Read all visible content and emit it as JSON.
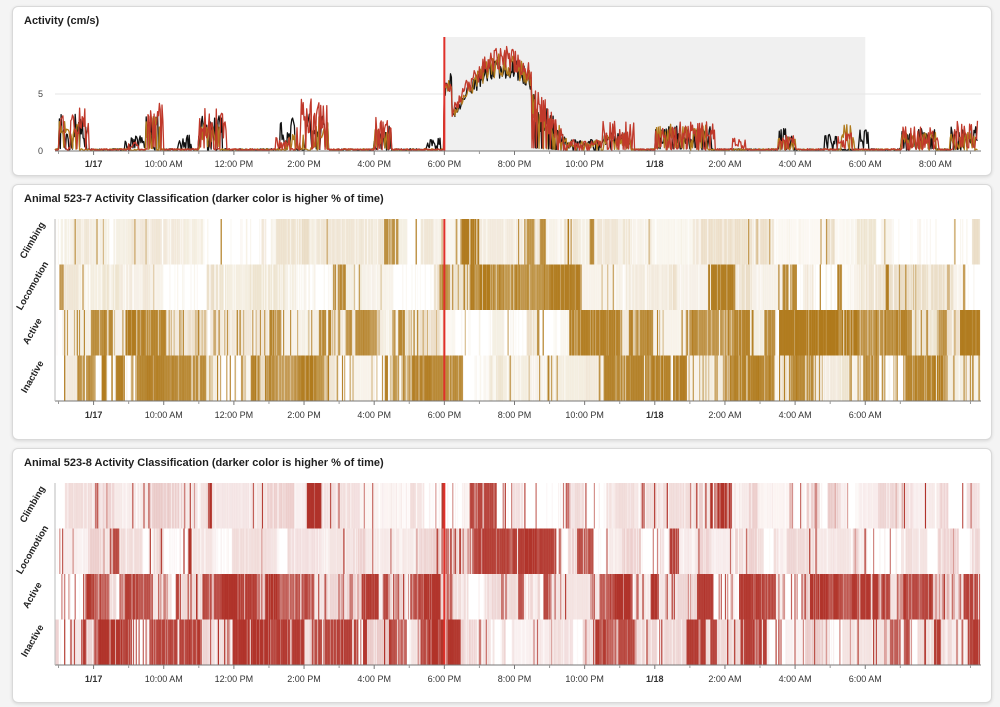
{
  "panels": {
    "activity_title": "Activity (cm/s)",
    "a7_title": "Animal 523-7 Activity Classification (darker color is higher % of time)",
    "a8_title": "Animal 523-8 Activity Classification (darker color is higher % of time)"
  },
  "colors": {
    "black_series": "#111111",
    "gold_series": "#b07a1c",
    "red_series": "#c0392b",
    "a7_fill": "#b07a1c",
    "a8_fill": "#b03128",
    "marker": "#e0302a",
    "dark_period": "#f0f0f0"
  },
  "chart_data": [
    {
      "type": "line",
      "title": "Activity (cm/s)",
      "x_ticks": [
        "1/17",
        "10:00 AM",
        "12:00 PM",
        "2:00 PM",
        "4:00 PM",
        "6:00 PM",
        "8:00 PM",
        "10:00 PM",
        "1/18",
        "2:00 AM",
        "4:00 AM",
        "6:00 AM",
        "8:00 AM"
      ],
      "bold_ticks": [
        "1/17",
        "1/18"
      ],
      "x_hours": [
        8,
        10,
        12,
        14,
        16,
        18,
        20,
        22,
        24,
        26,
        28,
        30,
        32
      ],
      "xlim_hours": [
        6.9,
        33.3
      ],
      "y_ticks": [
        0,
        5
      ],
      "ylim": [
        0,
        10
      ],
      "marker_hour": 18,
      "shaded_range_hours": [
        18,
        30
      ],
      "series": [
        {
          "color": "#111111",
          "bursts": [
            [
              7.0,
              7.8,
              3.4
            ],
            [
              8.9,
              9.4,
              1.3
            ],
            [
              9.2,
              9.5,
              1.4
            ],
            [
              9.5,
              9.9,
              3.6
            ],
            [
              10.4,
              10.8,
              1.4
            ],
            [
              11.0,
              11.7,
              3.2
            ],
            [
              13.3,
              13.8,
              3.0
            ],
            [
              14.0,
              14.7,
              3.5
            ],
            [
              16.0,
              16.5,
              2.4
            ],
            [
              17.5,
              17.9,
              1.2
            ],
            [
              22.5,
              23.3,
              1.6
            ],
            [
              24.0,
              25.6,
              2.2
            ],
            [
              27.5,
              28.0,
              2.0
            ],
            [
              28.8,
              29.2,
              1.5
            ],
            [
              29.8,
              30.1,
              1.9
            ],
            [
              31.0,
              32.0,
              2.0
            ],
            [
              32.4,
              33.2,
              2.2
            ]
          ],
          "night": [
            18,
            22.5,
            7.8
          ],
          "seed": 3
        },
        {
          "color": "#b07a1c",
          "bursts": [
            [
              7.0,
              7.6,
              2.6
            ],
            [
              9.5,
              9.9,
              3.1
            ],
            [
              11.0,
              11.6,
              2.6
            ],
            [
              13.5,
              14.0,
              1.8
            ],
            [
              14.2,
              14.7,
              3.0
            ],
            [
              16.0,
              16.5,
              2.0
            ],
            [
              22.5,
              23.3,
              1.5
            ],
            [
              24.0,
              25.5,
              2.4
            ],
            [
              27.5,
              28.0,
              1.3
            ],
            [
              29.3,
              29.7,
              2.3
            ],
            [
              31.0,
              32.0,
              1.8
            ],
            [
              32.4,
              33.1,
              1.8
            ]
          ],
          "night": [
            18,
            22.5,
            8.0
          ],
          "seed": 7
        },
        {
          "color": "#c0392b",
          "bursts": [
            [
              7.0,
              7.9,
              3.8
            ],
            [
              9.0,
              9.3,
              0.8
            ],
            [
              9.5,
              10.0,
              4.2
            ],
            [
              11.0,
              11.8,
              3.8
            ],
            [
              13.2,
              13.6,
              1.2
            ],
            [
              13.8,
              14.7,
              4.6
            ],
            [
              16.0,
              16.5,
              3.0
            ],
            [
              22.0,
              23.4,
              2.6
            ],
            [
              24.0,
              25.7,
              2.6
            ],
            [
              26.2,
              26.6,
              1.2
            ],
            [
              27.5,
              28.0,
              1.4
            ],
            [
              29.2,
              29.6,
              1.6
            ],
            [
              31.0,
              32.1,
              2.2
            ],
            [
              32.5,
              33.2,
              2.8
            ]
          ],
          "night": [
            18,
            22.5,
            8.6
          ],
          "seed": 11
        }
      ]
    },
    {
      "type": "heatmap",
      "title": "Animal 523-7 Activity Classification (darker color is higher % of time)",
      "rows": [
        "Climbing",
        "Locomotion",
        "Active",
        "Inactive"
      ],
      "x_ticks": [
        "1/17",
        "10:00 AM",
        "12:00 PM",
        "2:00 PM",
        "4:00 PM",
        "6:00 PM",
        "8:00 PM",
        "10:00 PM",
        "1/18",
        "2:00 AM",
        "4:00 AM",
        "6:00 AM"
      ],
      "marker_hour": 18,
      "profile": {
        "Climbing": [
          [
            7,
            17.7,
            0.06
          ],
          [
            17.7,
            21.8,
            0.3
          ],
          [
            21.8,
            33.3,
            0.05
          ]
        ],
        "Locomotion": [
          [
            7,
            17.7,
            0.08
          ],
          [
            17.7,
            21.7,
            0.85
          ],
          [
            21.7,
            22.8,
            0.35
          ],
          [
            22.8,
            33.3,
            0.08
          ]
        ],
        "Active": [
          [
            7,
            17.8,
            0.55
          ],
          [
            17.8,
            20.5,
            0.12
          ],
          [
            20.5,
            22.5,
            0.3
          ],
          [
            22.5,
            33.3,
            0.62
          ]
        ],
        "Inactive": [
          [
            7,
            17.8,
            0.5
          ],
          [
            17.8,
            20.5,
            0.05
          ],
          [
            20.5,
            22.5,
            0.15
          ],
          [
            22.5,
            33.3,
            0.5
          ]
        ]
      },
      "seed": 21
    },
    {
      "type": "heatmap",
      "title": "Animal 523-8 Activity Classification (darker color is higher % of time)",
      "rows": [
        "Climbing",
        "Locomotion",
        "Active",
        "Inactive"
      ],
      "x_ticks": [
        "1/17",
        "10:00 AM",
        "12:00 PM",
        "2:00 PM",
        "4:00 PM",
        "6:00 PM",
        "8:00 PM",
        "10:00 PM",
        "1/18",
        "2:00 AM",
        "4:00 AM",
        "6:00 AM"
      ],
      "marker_hour": 18,
      "profile": {
        "Climbing": [
          [
            7,
            17.7,
            0.1
          ],
          [
            17.7,
            21.8,
            0.35
          ],
          [
            21.8,
            33.3,
            0.12
          ]
        ],
        "Locomotion": [
          [
            7,
            17.7,
            0.1
          ],
          [
            17.7,
            20.8,
            0.9
          ],
          [
            20.8,
            22.0,
            0.3
          ],
          [
            22.0,
            33.3,
            0.1
          ]
        ],
        "Active": [
          [
            7,
            17.8,
            0.62
          ],
          [
            17.8,
            20.5,
            0.12
          ],
          [
            20.5,
            22.5,
            0.4
          ],
          [
            22.5,
            33.3,
            0.7
          ]
        ],
        "Inactive": [
          [
            7,
            17.8,
            0.45
          ],
          [
            17.8,
            20.5,
            0.05
          ],
          [
            20.5,
            22.5,
            0.15
          ],
          [
            22.5,
            33.3,
            0.4
          ]
        ]
      },
      "seed": 37
    }
  ]
}
